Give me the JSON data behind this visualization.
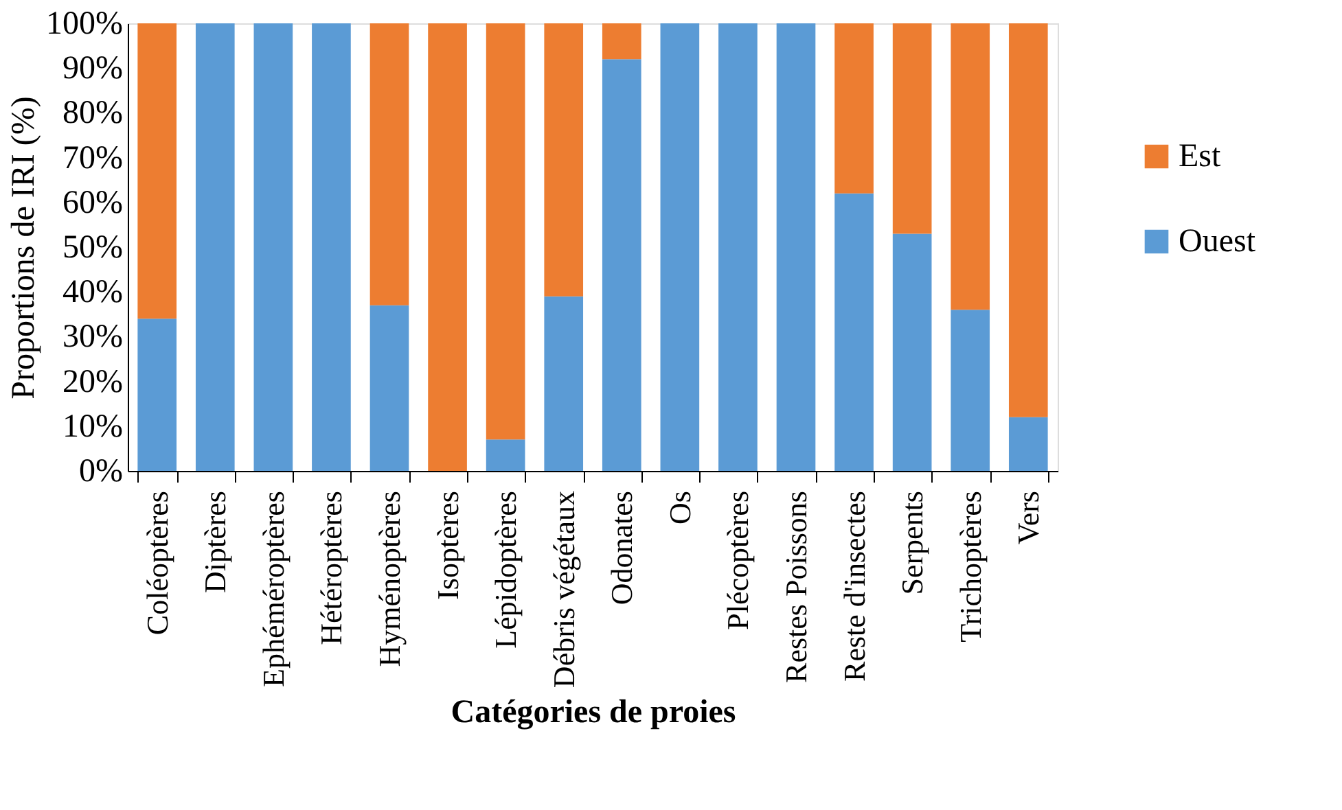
{
  "chart_data": {
    "type": "bar",
    "stacked": true,
    "xlabel": "Catégories de proies",
    "ylabel": "Proportions de IRI (%)",
    "categories": [
      "Coléoptères",
      "Diptères",
      "Ephéméroptères",
      "Hétéroptères",
      "Hyménoptères",
      "Isoptères",
      "Lépidoptères",
      "Débris végétaux",
      "Odonates",
      "Os",
      "Plécoptères",
      "Restes Poissons",
      "Reste d'insectes",
      "Serpents",
      "Trichoptères",
      "Vers"
    ],
    "series": [
      {
        "name": "Ouest",
        "color": "#5b9bd5",
        "values": [
          34,
          100,
          100,
          100,
          37,
          0,
          7,
          39,
          92,
          100,
          100,
          100,
          62,
          53,
          36,
          12
        ]
      },
      {
        "name": "Est",
        "color": "#ed7d31",
        "values": [
          66,
          0,
          0,
          0,
          63,
          100,
          93,
          61,
          8,
          0,
          0,
          0,
          38,
          47,
          64,
          88
        ]
      }
    ],
    "ylim": [
      0,
      100
    ],
    "yticks": [
      {
        "value": 0,
        "label": "0%"
      },
      {
        "value": 10,
        "label": "10%"
      },
      {
        "value": 20,
        "label": "20%"
      },
      {
        "value": 30,
        "label": "30%"
      },
      {
        "value": 40,
        "label": "40%"
      },
      {
        "value": 50,
        "label": "50%"
      },
      {
        "value": 60,
        "label": "60%"
      },
      {
        "value": 70,
        "label": "70%"
      },
      {
        "value": 80,
        "label": "80%"
      },
      {
        "value": 90,
        "label": "90%"
      },
      {
        "value": 100,
        "label": "100%"
      }
    ],
    "grid": false,
    "legend": "right"
  }
}
